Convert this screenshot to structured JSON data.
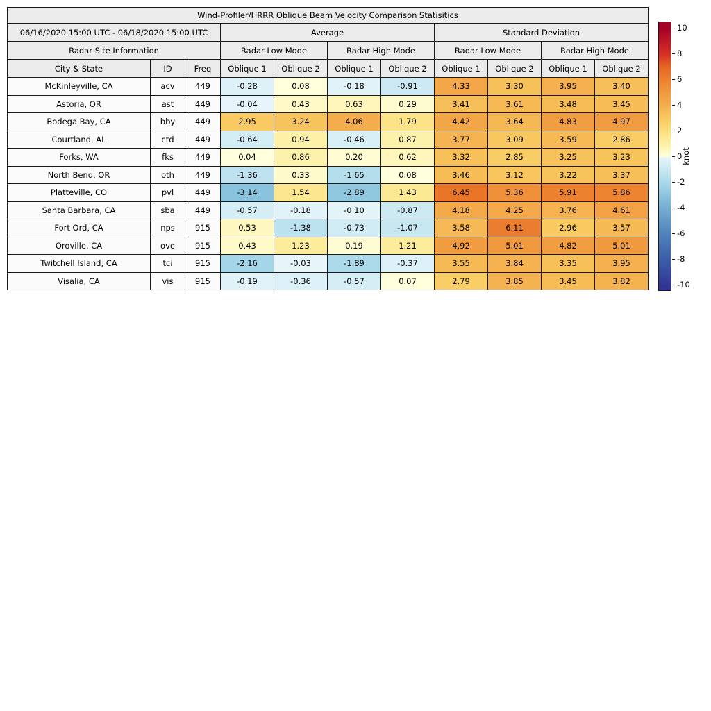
{
  "chart_data": {
    "type": "table",
    "title": "Wind-Profiler/HRRR Oblique Beam Velocity Comparison Statisitics",
    "date_range": "06/16/2020 15:00 UTC - 06/18/2020 15:00 UTC",
    "section_headers": [
      "Average",
      "Standard Deviation"
    ],
    "mode_headers": [
      "Radar Site Information",
      "Radar Low Mode",
      "Radar High Mode",
      "Radar Low Mode",
      "Radar High Mode"
    ],
    "column_headers": [
      "City & State",
      "ID",
      "Freq",
      "Oblique 1",
      "Oblique 2",
      "Oblique 1",
      "Oblique 2",
      "Oblique 1",
      "Oblique 2",
      "Oblique 1",
      "Oblique 2"
    ],
    "rows": [
      {
        "city": "McKinleyville, CA",
        "id": "acv",
        "freq": "449",
        "values": [
          -0.28,
          0.08,
          -0.18,
          -0.91,
          4.33,
          3.3,
          3.95,
          3.4
        ]
      },
      {
        "city": "Astoria, OR",
        "id": "ast",
        "freq": "449",
        "values": [
          -0.04,
          0.43,
          0.63,
          0.29,
          3.41,
          3.61,
          3.48,
          3.45
        ]
      },
      {
        "city": "Bodega Bay, CA",
        "id": "bby",
        "freq": "449",
        "values": [
          2.95,
          3.24,
          4.06,
          1.79,
          4.42,
          3.64,
          4.83,
          4.97
        ]
      },
      {
        "city": "Courtland, AL",
        "id": "ctd",
        "freq": "449",
        "values": [
          -0.64,
          0.94,
          -0.46,
          0.87,
          3.77,
          3.09,
          3.59,
          2.86
        ]
      },
      {
        "city": "Forks, WA",
        "id": "fks",
        "freq": "449",
        "values": [
          0.04,
          0.86,
          0.2,
          0.62,
          3.32,
          2.85,
          3.25,
          3.23
        ]
      },
      {
        "city": "North Bend, OR",
        "id": "oth",
        "freq": "449",
        "values": [
          -1.36,
          0.33,
          -1.65,
          0.08,
          3.46,
          3.12,
          3.22,
          3.37
        ]
      },
      {
        "city": "Platteville, CO",
        "id": "pvl",
        "freq": "449",
        "values": [
          -3.14,
          1.54,
          -2.89,
          1.43,
          6.45,
          5.36,
          5.91,
          5.86
        ]
      },
      {
        "city": "Santa Barbara, CA",
        "id": "sba",
        "freq": "449",
        "values": [
          -0.57,
          -0.18,
          -0.1,
          -0.87,
          4.18,
          4.25,
          3.76,
          4.61
        ]
      },
      {
        "city": "Fort Ord, CA",
        "id": "nps",
        "freq": "915",
        "values": [
          0.53,
          -1.38,
          -0.73,
          -1.07,
          3.58,
          6.11,
          2.96,
          3.57
        ]
      },
      {
        "city": "Oroville, CA",
        "id": "ove",
        "freq": "915",
        "values": [
          0.43,
          1.23,
          0.19,
          1.21,
          4.92,
          5.01,
          4.82,
          5.01
        ]
      },
      {
        "city": "Twitchell Island, CA",
        "id": "tci",
        "freq": "915",
        "values": [
          -2.16,
          -0.03,
          -1.89,
          -0.37,
          3.55,
          3.84,
          3.35,
          3.95
        ]
      },
      {
        "city": "Visalia, CA",
        "id": "vis",
        "freq": "915",
        "values": [
          -0.19,
          -0.36,
          -0.57,
          0.07,
          2.79,
          3.85,
          3.45,
          3.82
        ]
      }
    ],
    "colorbar": {
      "label": "knot",
      "ticks": [
        10,
        8,
        6,
        4,
        2,
        0,
        -2,
        -4,
        -6,
        -8,
        -10
      ],
      "vmin": -10,
      "vmax": 10
    },
    "colormap_stops": [
      {
        "v": -10,
        "c": "#313695"
      },
      {
        "v": -8,
        "c": "#3b5ea8"
      },
      {
        "v": -6,
        "c": "#4f83bb"
      },
      {
        "v": -4,
        "c": "#74add1"
      },
      {
        "v": -3,
        "c": "#8cc5de"
      },
      {
        "v": -2,
        "c": "#aad8ea"
      },
      {
        "v": -1,
        "c": "#c9e8f2"
      },
      {
        "v": -0.001,
        "c": "#e6f5fa"
      },
      {
        "v": 0.001,
        "c": "#ffffdf"
      },
      {
        "v": 1,
        "c": "#fdf0a4"
      },
      {
        "v": 2,
        "c": "#fbdf7e"
      },
      {
        "v": 3,
        "c": "#f8c95f"
      },
      {
        "v": 4,
        "c": "#f4ae4d"
      },
      {
        "v": 5,
        "c": "#f09a3f"
      },
      {
        "v": 6,
        "c": "#ec802f"
      },
      {
        "v": 7,
        "c": "#e56722"
      },
      {
        "v": 8,
        "c": "#d73027"
      },
      {
        "v": 10,
        "c": "#a50026"
      }
    ]
  }
}
